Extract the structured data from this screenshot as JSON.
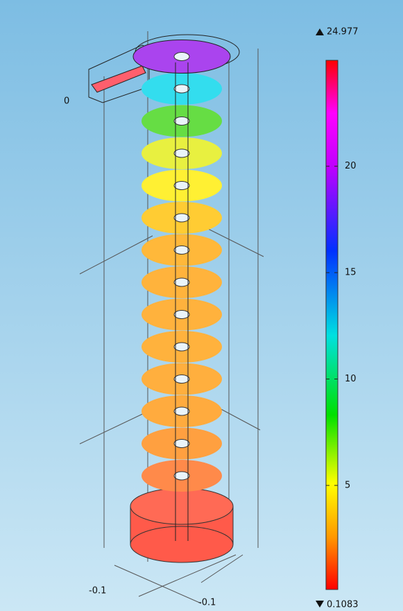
{
  "colorbar": {
    "max": 24.977,
    "min": 0.1083,
    "ticks": [
      5,
      10,
      15,
      20
    ]
  },
  "axis_labels": {
    "z": "0",
    "x": "-0.1",
    "y": "-0.1"
  }
}
